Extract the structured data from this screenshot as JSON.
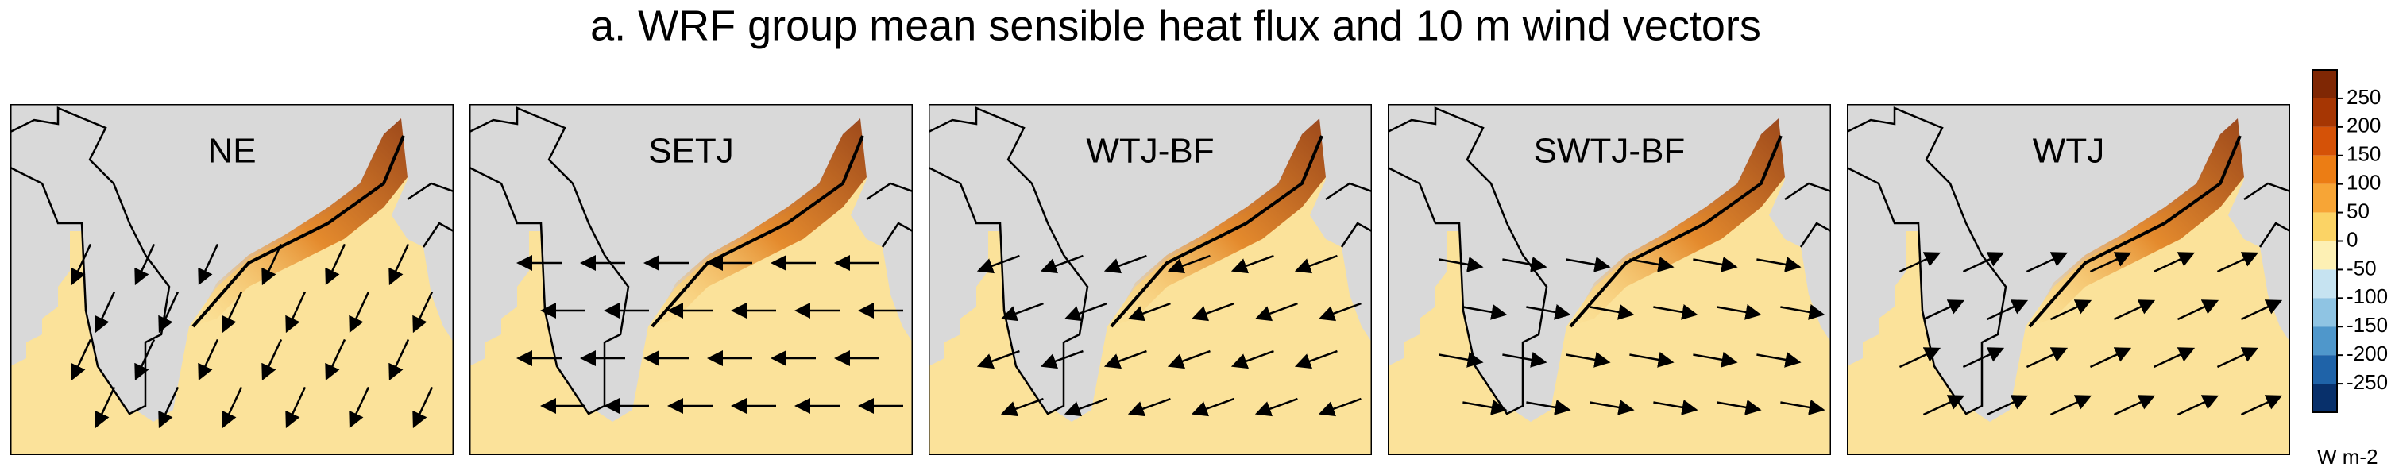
{
  "title": "a. WRF group mean sensible heat flux and 10 m wind vectors",
  "panels": [
    "NE",
    "SETJ",
    "WTJ-BF",
    "SWTJ-BF",
    "WTJ"
  ],
  "colorbar": {
    "ticks": [
      250,
      200,
      150,
      100,
      50,
      0,
      -50,
      -100,
      -150,
      -200,
      -250
    ],
    "colors": [
      "#7f2704",
      "#a63603",
      "#d55207",
      "#ec7d14",
      "#f7a536",
      "#fbd365",
      "#fdf0b4",
      "#c6e3f1",
      "#8fc4e3",
      "#4f97cb",
      "#1f63a8",
      "#08306b"
    ],
    "unit": "W m-2"
  }
}
